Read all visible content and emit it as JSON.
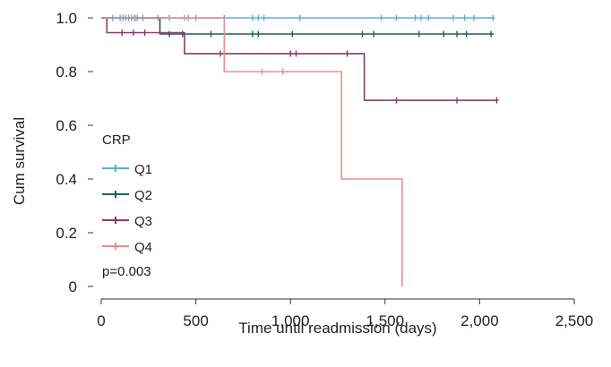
{
  "chart_data": {
    "type": "line",
    "subtype": "kaplan-meier",
    "xlabel": "Time until readmission (days)",
    "ylabel": "Cum survival",
    "xlim": [
      0,
      2500
    ],
    "ylim": [
      0,
      1.0
    ],
    "xticks": [
      {
        "value": 0,
        "label": "0"
      },
      {
        "value": 500,
        "label": "500"
      },
      {
        "value": 1000,
        "label": "1,000"
      },
      {
        "value": 1500,
        "label": "1,500"
      },
      {
        "value": 2000,
        "label": "2,000"
      },
      {
        "value": 2500,
        "label": "2,500"
      }
    ],
    "yticks": [
      {
        "value": 0,
        "label": "0"
      },
      {
        "value": 0.2,
        "label": "0.2"
      },
      {
        "value": 0.4,
        "label": "0.4"
      },
      {
        "value": 0.6,
        "label": "0.6"
      },
      {
        "value": 0.8,
        "label": "0.8"
      },
      {
        "value": 1.0,
        "label": "1.0"
      }
    ],
    "grid": false,
    "legend_title": "CRP",
    "legend_position": "left-middle",
    "annotation": "p=0.003",
    "series": [
      {
        "name": "Q1",
        "color": "#5aaed8",
        "steps": [
          [
            0,
            1.0
          ],
          [
            2080,
            1.0
          ]
        ],
        "censored": [
          [
            60,
            1.0
          ],
          [
            100,
            1.0
          ],
          [
            115,
            1.0
          ],
          [
            130,
            1.0
          ],
          [
            145,
            1.0
          ],
          [
            160,
            1.0
          ],
          [
            175,
            1.0
          ],
          [
            190,
            1.0
          ],
          [
            220,
            1.0
          ],
          [
            300,
            1.0
          ],
          [
            360,
            1.0
          ],
          [
            460,
            1.0
          ],
          [
            500,
            1.0
          ],
          [
            650,
            1.0
          ],
          [
            800,
            1.0
          ],
          [
            830,
            1.0
          ],
          [
            860,
            1.0
          ],
          [
            1050,
            1.0
          ],
          [
            1480,
            1.0
          ],
          [
            1560,
            1.0
          ],
          [
            1660,
            1.0
          ],
          [
            1690,
            1.0
          ],
          [
            1730,
            1.0
          ],
          [
            1860,
            1.0
          ],
          [
            1920,
            1.0
          ],
          [
            1970,
            1.0
          ],
          [
            2070,
            1.0
          ]
        ]
      },
      {
        "name": "Q2",
        "color": "#1f5f5b",
        "steps": [
          [
            0,
            1.0
          ],
          [
            310,
            1.0
          ],
          [
            310,
            0.94
          ],
          [
            2075,
            0.94
          ]
        ],
        "censored": [
          [
            360,
            0.94
          ],
          [
            430,
            0.94
          ],
          [
            580,
            0.94
          ],
          [
            800,
            0.94
          ],
          [
            830,
            0.94
          ],
          [
            1010,
            0.94
          ],
          [
            1380,
            0.94
          ],
          [
            1440,
            0.94
          ],
          [
            1680,
            0.94
          ],
          [
            1810,
            0.94
          ],
          [
            1880,
            0.94
          ],
          [
            1930,
            0.94
          ],
          [
            2060,
            0.94
          ]
        ]
      },
      {
        "name": "Q3",
        "color": "#8a3b63",
        "steps": [
          [
            0,
            1.0
          ],
          [
            30,
            1.0
          ],
          [
            30,
            0.945
          ],
          [
            440,
            0.945
          ],
          [
            440,
            0.867
          ],
          [
            1390,
            0.867
          ],
          [
            1390,
            0.693
          ],
          [
            2100,
            0.693
          ]
        ],
        "censored": [
          [
            110,
            0.945
          ],
          [
            170,
            0.945
          ],
          [
            230,
            0.945
          ],
          [
            630,
            0.867
          ],
          [
            1000,
            0.867
          ],
          [
            1030,
            0.867
          ],
          [
            1300,
            0.867
          ],
          [
            1560,
            0.693
          ],
          [
            1880,
            0.693
          ],
          [
            2090,
            0.693
          ]
        ]
      },
      {
        "name": "Q4",
        "color": "#f08b8b",
        "steps": [
          [
            0,
            1.0
          ],
          [
            650,
            1.0
          ],
          [
            650,
            0.8
          ],
          [
            1270,
            0.8
          ],
          [
            1270,
            0.4
          ],
          [
            1590,
            0.4
          ],
          [
            1590,
            0.0
          ]
        ],
        "censored": [
          [
            180,
            1.0
          ],
          [
            440,
            1.0
          ],
          [
            850,
            0.8
          ],
          [
            960,
            0.8
          ]
        ]
      }
    ]
  }
}
